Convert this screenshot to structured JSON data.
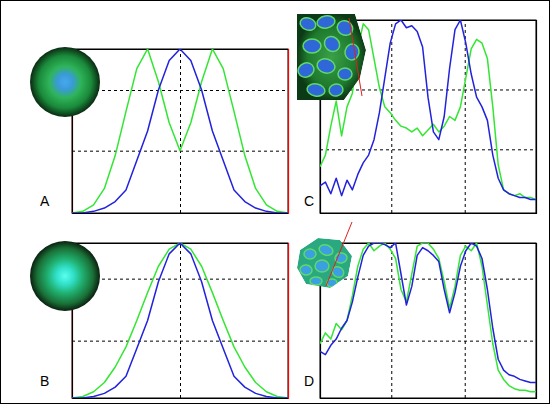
{
  "chart_data": [
    {
      "type": "line",
      "title": "A",
      "grid": true,
      "tick_labels": false,
      "x": [
        0,
        5,
        10,
        15,
        20,
        25,
        30,
        35,
        40,
        45,
        50,
        55,
        60,
        65,
        70,
        75,
        80,
        85,
        90,
        95,
        100
      ],
      "xlim": [
        0,
        100
      ],
      "ylim": [
        0,
        100
      ],
      "xticks": [
        50
      ],
      "yticks": [
        38,
        75
      ],
      "series": [
        {
          "color": "#33e633",
          "values": [
            0,
            1,
            5,
            15,
            35,
            62,
            88,
            100,
            80,
            55,
            38,
            55,
            80,
            100,
            88,
            62,
            35,
            15,
            5,
            1,
            0
          ]
        },
        {
          "color": "#2222dd",
          "values": [
            0,
            0,
            1,
            3,
            7,
            14,
            32,
            50,
            75,
            93,
            100,
            93,
            75,
            50,
            32,
            14,
            7,
            3,
            1,
            0,
            0
          ]
        }
      ]
    },
    {
      "type": "line",
      "title": "B",
      "grid": true,
      "tick_labels": false,
      "x": [
        0,
        5,
        10,
        15,
        20,
        25,
        30,
        35,
        40,
        45,
        50,
        55,
        60,
        65,
        70,
        75,
        80,
        85,
        90,
        95,
        100
      ],
      "xlim": [
        0,
        100
      ],
      "ylim": [
        0,
        100
      ],
      "xticks": [
        50
      ],
      "yticks": [
        37,
        77
      ],
      "series": [
        {
          "color": "#33e633",
          "values": [
            0,
            1,
            4,
            10,
            20,
            33,
            50,
            68,
            85,
            96,
            100,
            96,
            85,
            68,
            50,
            33,
            20,
            10,
            4,
            1,
            0
          ]
        },
        {
          "color": "#2222dd",
          "values": [
            0,
            0,
            1,
            3,
            7,
            14,
            32,
            50,
            75,
            93,
            100,
            93,
            75,
            50,
            32,
            14,
            7,
            3,
            1,
            0,
            0
          ]
        }
      ]
    },
    {
      "type": "line",
      "title": "C",
      "grid": true,
      "tick_labels": false,
      "x": [
        0,
        2.5,
        5,
        7.5,
        10,
        12.5,
        15,
        17.5,
        20,
        22.5,
        25,
        27.5,
        30,
        32.5,
        35,
        37.5,
        40,
        42.5,
        45,
        47.5,
        50,
        52.5,
        55,
        57.5,
        60,
        62.5,
        65,
        67.5,
        70,
        72.5,
        75,
        77.5,
        80,
        82.5,
        85,
        87.5,
        90,
        92.5,
        95,
        97.5,
        100
      ],
      "xlim": [
        0,
        100
      ],
      "ylim": [
        0,
        100
      ],
      "xticks": [
        33,
        67
      ],
      "yticks": [
        33,
        64
      ],
      "series": [
        {
          "color": "#33e633",
          "values": [
            24,
            30,
            45,
            58,
            40,
            55,
            62,
            85,
            98,
            95,
            80,
            65,
            55,
            52,
            48,
            45,
            44,
            42,
            44,
            40,
            43,
            46,
            42,
            45,
            50,
            48,
            55,
            70,
            85,
            90,
            88,
            80,
            55,
            25,
            12,
            10,
            9,
            10,
            8,
            8,
            7
          ]
        },
        {
          "color": "#2222dd",
          "values": [
            14,
            16,
            10,
            18,
            9,
            17,
            12,
            20,
            26,
            30,
            38,
            52,
            70,
            88,
            98,
            100,
            96,
            97,
            94,
            86,
            60,
            42,
            38,
            50,
            75,
            95,
            100,
            88,
            72,
            60,
            55,
            48,
            30,
            18,
            12,
            10,
            9,
            8,
            8,
            7,
            7
          ]
        }
      ]
    },
    {
      "type": "line",
      "title": "D",
      "grid": true,
      "tick_labels": false,
      "x": [
        0,
        2.5,
        5,
        7.5,
        10,
        12.5,
        15,
        17.5,
        20,
        22.5,
        25,
        27.5,
        30,
        32.5,
        35,
        37.5,
        40,
        42.5,
        45,
        47.5,
        50,
        52.5,
        55,
        57.5,
        60,
        62.5,
        65,
        67.5,
        70,
        72.5,
        75,
        77.5,
        80,
        82.5,
        85,
        87.5,
        90,
        92.5,
        95,
        97.5,
        100
      ],
      "xlim": [
        0,
        100
      ],
      "ylim": [
        0,
        100
      ],
      "xticks": [
        33,
        67
      ],
      "yticks": [
        37,
        77
      ],
      "series": [
        {
          "color": "#33e633",
          "values": [
            35,
            42,
            38,
            48,
            44,
            50,
            66,
            85,
            96,
            100,
            95,
            98,
            100,
            96,
            90,
            70,
            62,
            80,
            98,
            100,
            100,
            96,
            90,
            75,
            58,
            72,
            92,
            98,
            95,
            100,
            85,
            60,
            35,
            18,
            12,
            8,
            6,
            5,
            5,
            4,
            4
          ]
        },
        {
          "color": "#2222dd",
          "values": [
            30,
            28,
            34,
            38,
            45,
            50,
            62,
            78,
            92,
            98,
            100,
            100,
            99,
            97,
            100,
            80,
            60,
            72,
            92,
            97,
            95,
            92,
            88,
            70,
            55,
            68,
            85,
            95,
            100,
            98,
            90,
            70,
            45,
            25,
            18,
            15,
            14,
            12,
            11,
            10,
            10
          ]
        }
      ]
    }
  ]
}
